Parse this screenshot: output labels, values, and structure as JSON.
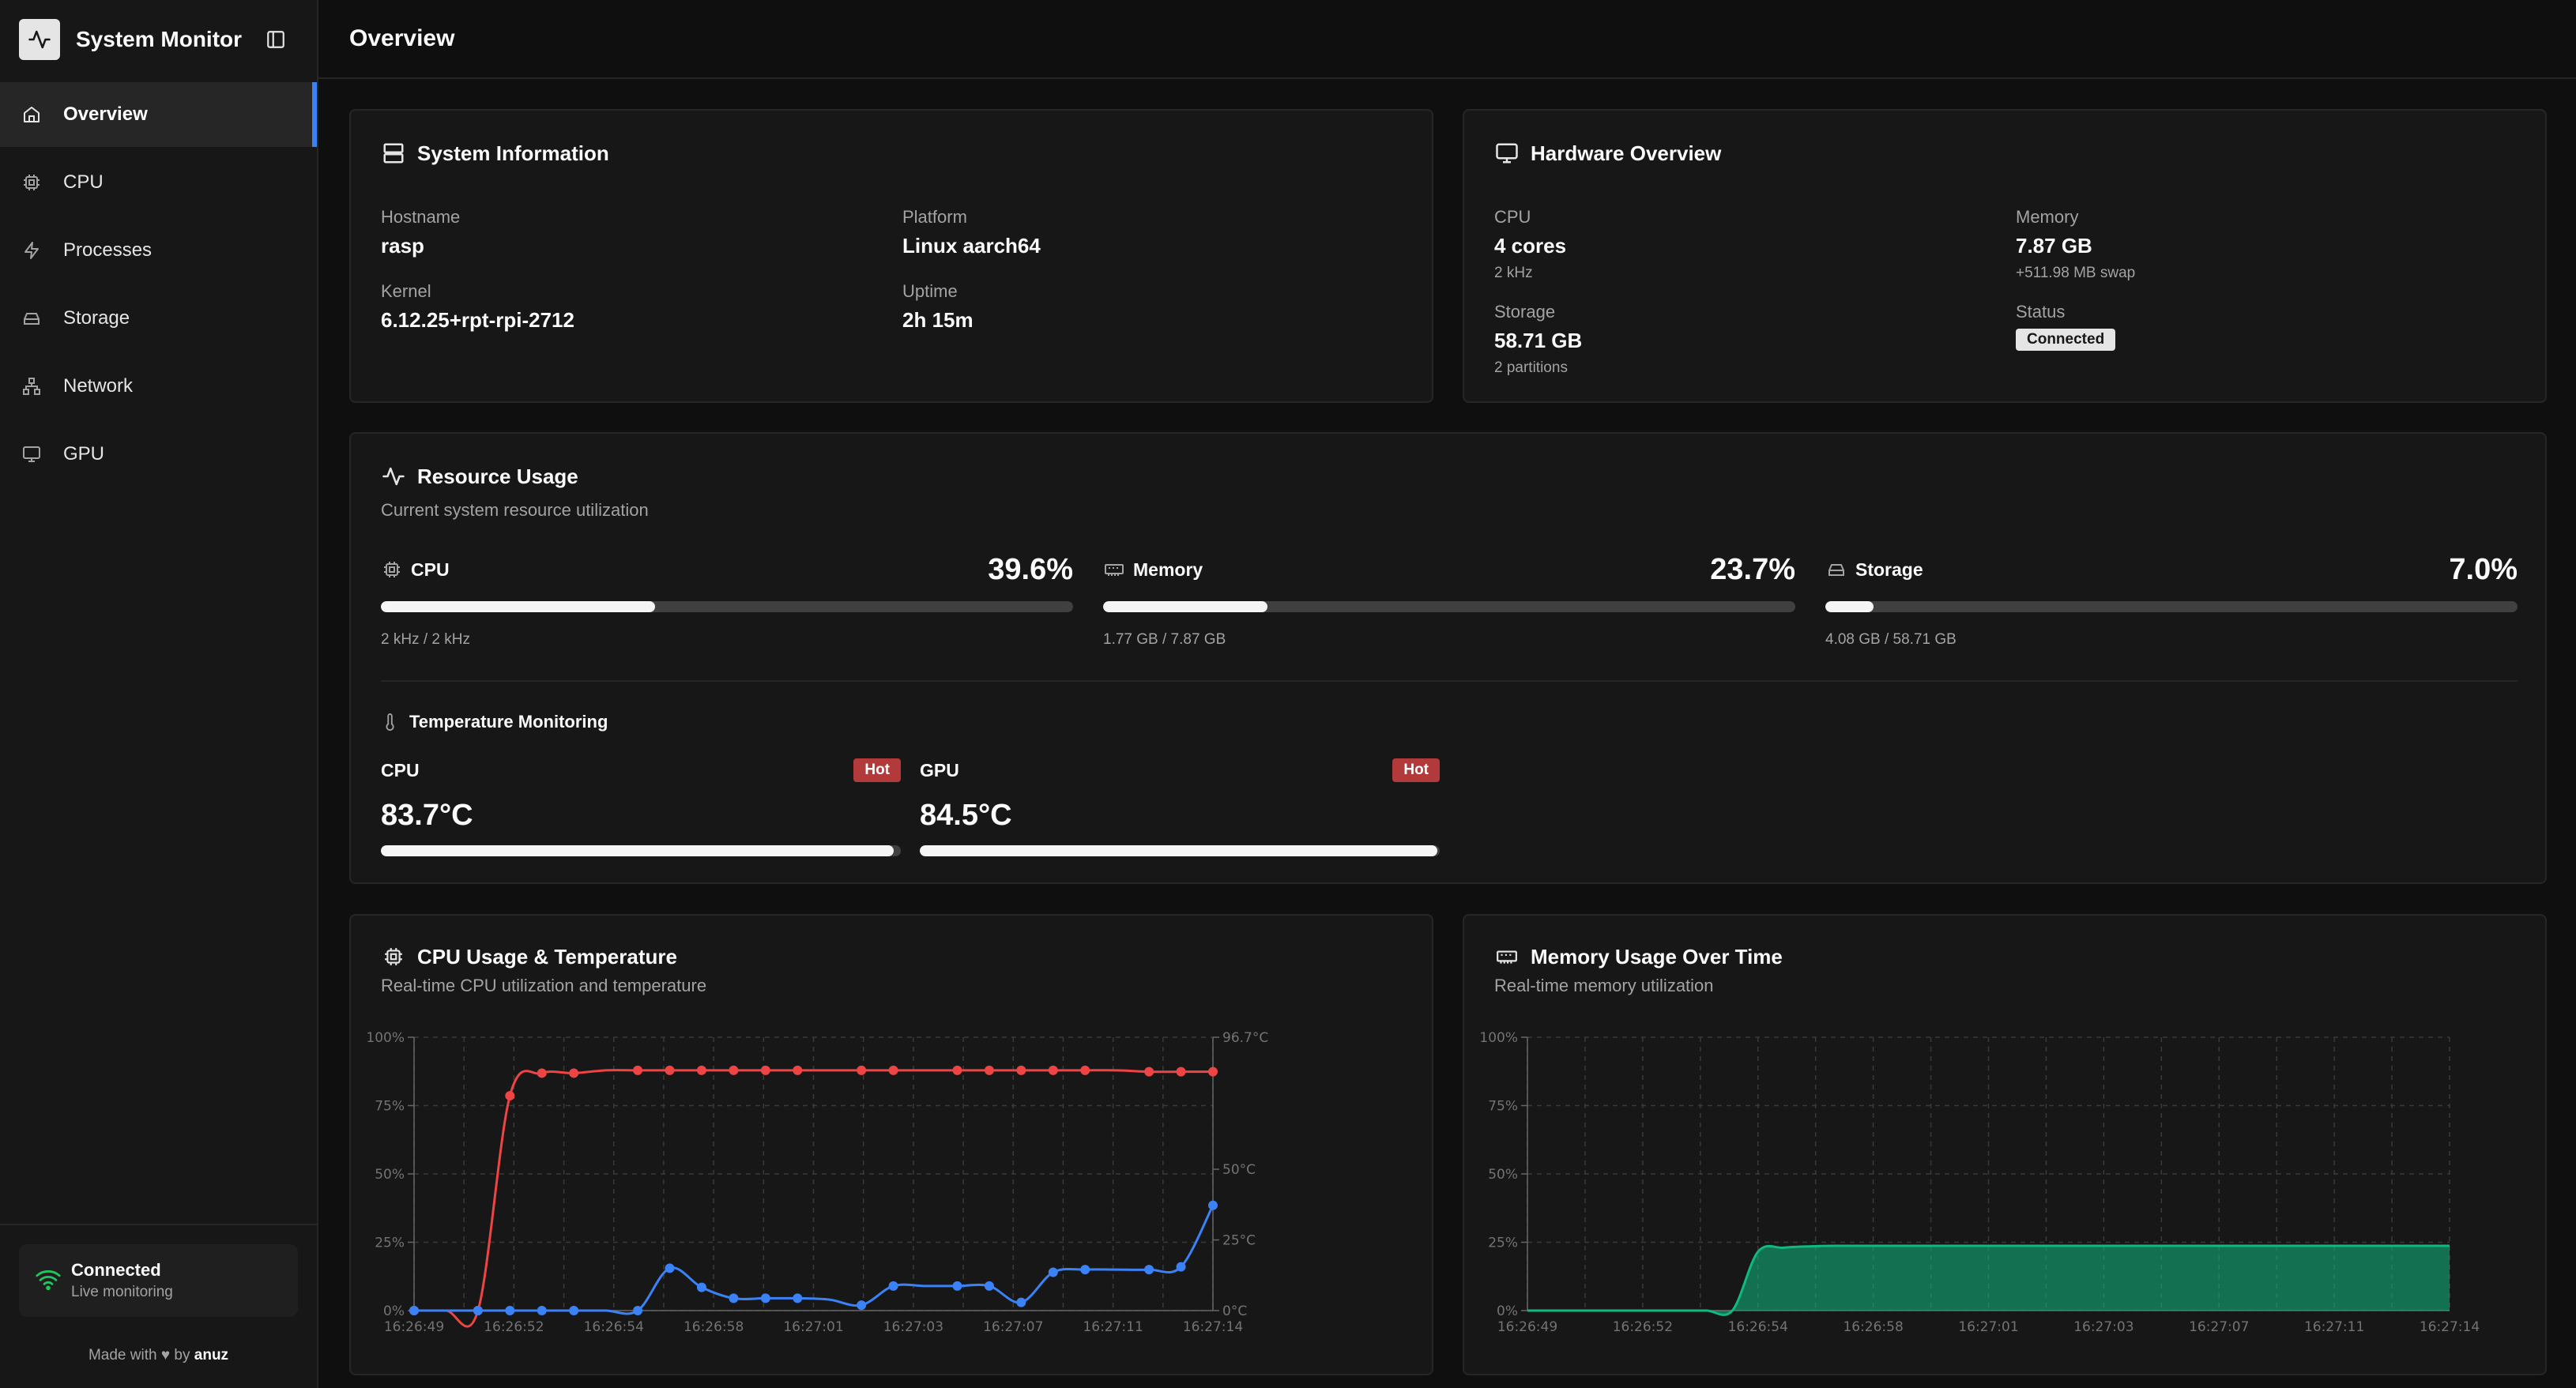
{
  "app": {
    "title": "System Monitor"
  },
  "sidebar": {
    "items": [
      {
        "label": "Overview",
        "icon": "home-icon",
        "active": true
      },
      {
        "label": "CPU",
        "icon": "cpu-icon"
      },
      {
        "label": "Processes",
        "icon": "zap-icon"
      },
      {
        "label": "Storage",
        "icon": "hard-drive-icon"
      },
      {
        "label": "Network",
        "icon": "network-icon"
      },
      {
        "label": "GPU",
        "icon": "monitor-icon"
      }
    ],
    "status": {
      "title": "Connected",
      "subtitle": "Live monitoring"
    },
    "footer": {
      "prefix": "Made with",
      "by": "by",
      "author": "anuz"
    }
  },
  "header": {
    "title": "Overview"
  },
  "system_info": {
    "title": "System Information",
    "hostname_label": "Hostname",
    "hostname": "rasp",
    "platform_label": "Platform",
    "platform": "Linux aarch64",
    "kernel_label": "Kernel",
    "kernel": "6.12.25+rpt-rpi-2712",
    "uptime_label": "Uptime",
    "uptime": "2h 15m"
  },
  "hardware": {
    "title": "Hardware Overview",
    "cpu_label": "CPU",
    "cpu": "4 cores",
    "cpu_sub": "2 kHz",
    "memory_label": "Memory",
    "memory": "7.87 GB",
    "memory_sub": "+511.98 MB swap",
    "storage_label": "Storage",
    "storage": "58.71 GB",
    "storage_sub": "2 partitions",
    "status_label": "Status",
    "status": "Connected"
  },
  "resource": {
    "title": "Resource Usage",
    "subtitle": "Current system resource utilization",
    "cpu": {
      "label": "CPU",
      "value": "39.6%",
      "fraction": 0.396,
      "sub": "2 kHz / 2 kHz"
    },
    "memory": {
      "label": "Memory",
      "value": "23.7%",
      "fraction": 0.237,
      "sub": "1.77 GB / 7.87 GB"
    },
    "storage": {
      "label": "Storage",
      "value": "7.0%",
      "fraction": 0.07,
      "sub": "4.08 GB / 58.71 GB"
    },
    "temp_title": "Temperature Monitoring",
    "temps": [
      {
        "label": "CPU",
        "badge": "Hot",
        "value": "83.7°C",
        "fraction": 0.987
      },
      {
        "label": "GPU",
        "badge": "Hot",
        "value": "84.5°C",
        "fraction": 0.995
      }
    ]
  },
  "cpu_chart_card": {
    "title": "CPU Usage & Temperature",
    "subtitle": "Real-time CPU utilization and temperature"
  },
  "mem_chart_card": {
    "title": "Memory Usage Over Time",
    "subtitle": "Real-time memory utilization"
  },
  "colors": {
    "accent": "#3b82f6",
    "temp_line": "#ef4444",
    "cpu_line": "#3b82f6",
    "memory_area": "#10b981",
    "hot": "#b33a3a"
  },
  "chart_data": [
    {
      "type": "line",
      "x": [
        "16:26:49",
        "16:26:50",
        "16:26:51",
        "16:26:52",
        "16:26:53",
        "16:26:54",
        "16:26:55",
        "16:26:56",
        "16:26:57",
        "16:26:58",
        "16:26:59",
        "16:27:00",
        "16:27:01",
        "16:27:02",
        "16:27:03",
        "16:27:04",
        "16:27:05",
        "16:27:06",
        "16:27:07",
        "16:27:08",
        "16:27:09",
        "16:27:10",
        "16:27:11",
        "16:27:12",
        "16:27:13",
        "16:27:14"
      ],
      "x_ticks": [
        "16:26:49",
        "16:26:52",
        "16:26:54",
        "16:26:58",
        "16:27:01",
        "16:27:03",
        "16:27:07",
        "16:27:11",
        "16:27:14"
      ],
      "y_ticks": [
        "100%",
        "75%",
        "50%",
        "25%",
        "0%"
      ],
      "y2_ticks": [
        "96.7°C",
        "50°C",
        "25°C",
        "0°C"
      ],
      "ylim": [
        0,
        100
      ],
      "y2lim": [
        0,
        96.7
      ],
      "grid": true,
      "series": [
        {
          "axis": "right",
          "color": "#ef4444",
          "x": [
            "16:26:49",
            "16:26:50",
            "16:26:51",
            "16:26:52",
            "16:26:53",
            "16:26:54",
            "16:26:55",
            "16:26:56",
            "16:26:57",
            "16:26:58",
            "16:26:59",
            "16:27:00",
            "16:27:01",
            "16:27:02",
            "16:27:03",
            "16:27:04",
            "16:27:05",
            "16:27:06",
            "16:27:07",
            "16:27:08",
            "16:27:09",
            "16:27:10",
            "16:27:11",
            "16:27:12",
            "16:27:13",
            "16:27:14"
          ],
          "values": [
            0,
            0,
            0,
            76,
            84,
            84,
            85,
            85,
            85,
            85,
            85,
            85,
            85,
            85,
            85,
            85,
            85,
            85,
            85,
            85,
            85,
            85,
            85,
            84.5,
            84.5,
            84.5
          ]
        },
        {
          "axis": "left",
          "color": "#3b82f6",
          "x": [
            "16:26:49",
            "16:26:50",
            "16:26:51",
            "16:26:52",
            "16:26:53",
            "16:26:54",
            "16:26:55",
            "16:26:56",
            "16:26:57",
            "16:26:58",
            "16:26:59",
            "16:27:00",
            "16:27:01",
            "16:27:02",
            "16:27:03",
            "16:27:04",
            "16:27:05",
            "16:27:06",
            "16:27:07",
            "16:27:08",
            "16:27:09",
            "16:27:10",
            "16:27:11",
            "16:27:12",
            "16:27:13",
            "16:27:14"
          ],
          "values": [
            0,
            0,
            0,
            0,
            0,
            0,
            0,
            0,
            15.5,
            8.5,
            4.5,
            4.5,
            4.5,
            4,
            2,
            9,
            9,
            9,
            9,
            3,
            14,
            15,
            15,
            15,
            16,
            38.5
          ]
        }
      ]
    },
    {
      "type": "area",
      "x_ticks": [
        "16:26:49",
        "16:26:52",
        "16:26:54",
        "16:26:58",
        "16:27:01",
        "16:27:03",
        "16:27:07",
        "16:27:11",
        "16:27:14"
      ],
      "y_ticks": [
        "100%",
        "75%",
        "50%",
        "25%",
        "0%"
      ],
      "ylim": [
        0,
        100
      ],
      "grid": true,
      "series": [
        {
          "color": "#10b981",
          "values": [
            0,
            0,
            0,
            0,
            0,
            0,
            0,
            0,
            0,
            21.5,
            23,
            23.5,
            23.7,
            23.7,
            23.7,
            23.7,
            23.7,
            23.7,
            23.7,
            23.7,
            23.7,
            23.7,
            23.7,
            23.7,
            23.7,
            23.7,
            23.7,
            23.7,
            23.7,
            23.7,
            23.7,
            23.7,
            23.7,
            23.7,
            23.7,
            23.7,
            23.7
          ]
        }
      ]
    }
  ]
}
